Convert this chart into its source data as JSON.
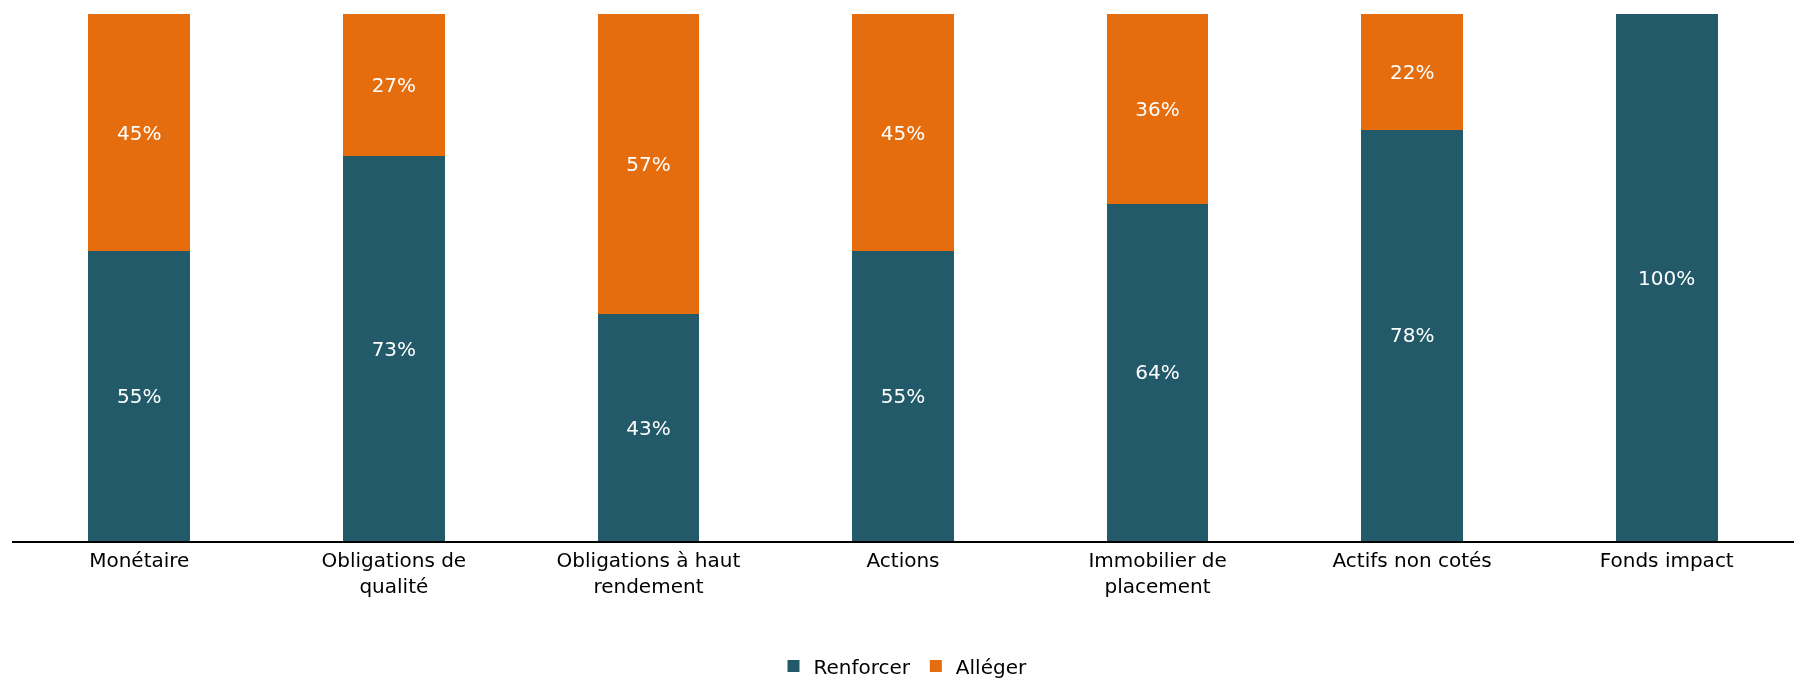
{
  "chart_data": {
    "type": "bar",
    "stacked": true,
    "data_labels": true,
    "legend": "bottom",
    "tick_labels": "x",
    "ylim": [
      0,
      100
    ],
    "categories": [
      "Monétaire",
      "Obligations de qualité",
      "Obligations à haut rendement",
      "Actions",
      "Immobilier de placement",
      "Actifs non cotés",
      "Fonds impact"
    ],
    "series": [
      {
        "name": "Renforcer",
        "color": "#235a69",
        "values": [
          55,
          73,
          43,
          55,
          64,
          78,
          100
        ],
        "value_labels": [
          "55%",
          "73%",
          "43%",
          "55%",
          "64%",
          "78%",
          "100%"
        ]
      },
      {
        "name": "Alléger",
        "color": "#e56d0d",
        "values": [
          45,
          27,
          57,
          45,
          36,
          22,
          null
        ],
        "value_labels": [
          "45%",
          "27%",
          "57%",
          "45%",
          "36%",
          "22%",
          null
        ]
      }
    ]
  }
}
